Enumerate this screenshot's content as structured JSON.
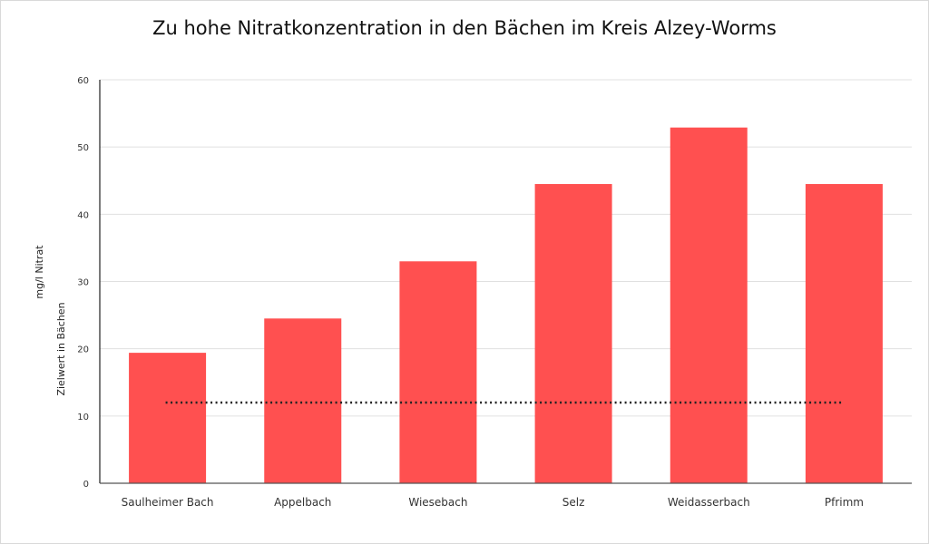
{
  "chart_data": {
    "type": "bar",
    "title": "Zu hohe Nitratkonzentration in den Bächen im Kreis Alzey-Worms",
    "ylabel": "mg/l Nitrat",
    "reference_line": {
      "label": "Zielwert in Bächen",
      "value": 12,
      "style": "dotted",
      "color": "#222222"
    },
    "categories": [
      "Saulheimer Bach",
      "Appelbach",
      "Wiesebach",
      "Selz",
      "Weidasserbach",
      "Pfrimm"
    ],
    "values": [
      19.4,
      24.5,
      33.0,
      44.5,
      52.9,
      44.5
    ],
    "ylim": [
      0,
      60
    ],
    "yticks": [
      0,
      10,
      20,
      30,
      40,
      50,
      60
    ],
    "grid": true,
    "legend": "none",
    "bar_color": "#FF5050"
  }
}
